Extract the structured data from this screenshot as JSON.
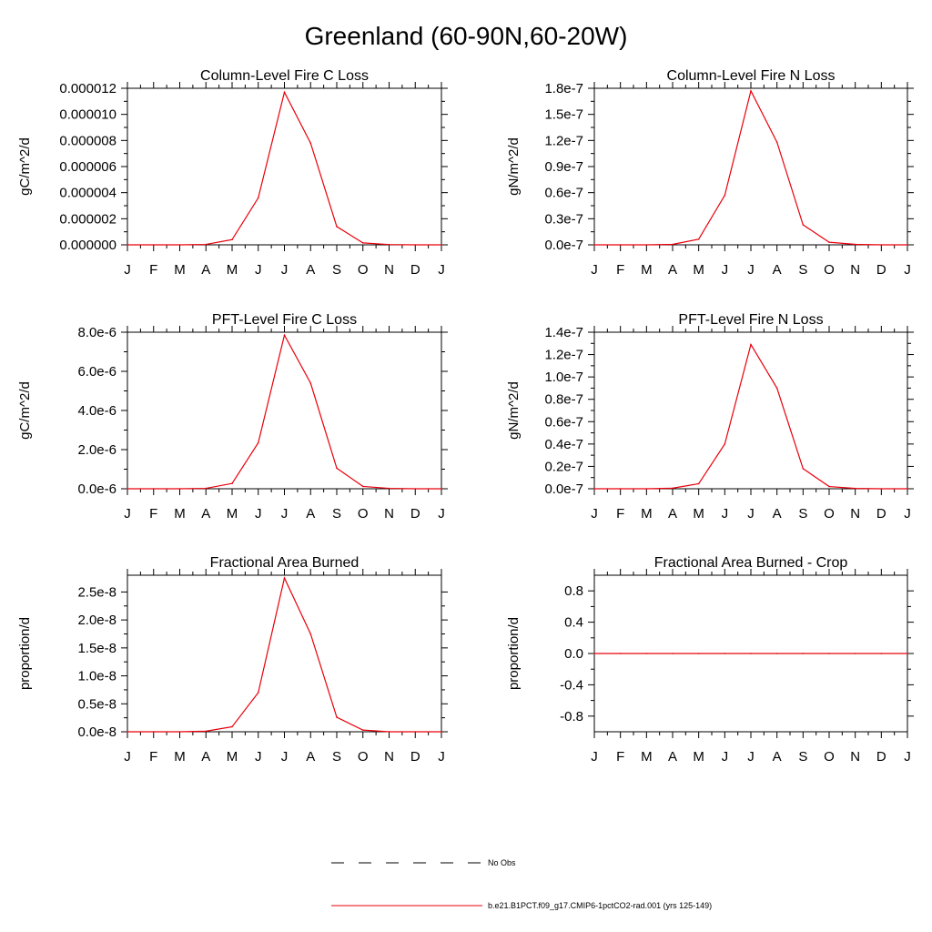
{
  "figure": {
    "title": "Greenland (60-90N,60-20W)",
    "series_color": "#e8000b",
    "legend": [
      {
        "label": "No Obs",
        "style": "dashed",
        "color": "#000000"
      },
      {
        "label": "b.e21.B1PCT.f09_g17.CMIP6-1pctCO2-rad.001 (yrs 125-149)",
        "style": "solid",
        "color": "#e8000b"
      }
    ]
  },
  "chart_data": [
    {
      "type": "line",
      "title": "Column-Level Fire C Loss",
      "ylabel": "gC/m^2/d",
      "categories": [
        "J",
        "F",
        "M",
        "A",
        "M",
        "J",
        "J",
        "A",
        "S",
        "O",
        "N",
        "D",
        "J"
      ],
      "ylim": [
        0,
        1.2e-05
      ],
      "yticks": [
        0,
        2e-06,
        4e-06,
        6e-06,
        8e-06,
        1e-05,
        1.2e-05
      ],
      "ytick_labels": [
        "0.000000",
        "0.000002",
        "0.000004",
        "0.000006",
        "0.000008",
        "0.000010",
        "0.000012"
      ],
      "values": [
        0,
        0,
        0,
        3e-08,
        4e-07,
        3.6e-06,
        1.17e-05,
        7.8e-06,
        1.4e-06,
        1.5e-07,
        2e-08,
        0,
        0
      ]
    },
    {
      "type": "line",
      "title": "Column-Level Fire N Loss",
      "ylabel": "gN/m^2/d",
      "categories": [
        "J",
        "F",
        "M",
        "A",
        "M",
        "J",
        "J",
        "A",
        "S",
        "O",
        "N",
        "D",
        "J"
      ],
      "ylim": [
        0,
        1.8e-07
      ],
      "yticks": [
        0,
        3e-08,
        6e-08,
        9e-08,
        1.2e-07,
        1.5e-07,
        1.8e-07
      ],
      "ytick_labels": [
        "0.0e-7",
        "0.3e-7",
        "0.6e-7",
        "0.9e-7",
        "1.2e-7",
        "1.5e-7",
        "1.8e-7"
      ],
      "values": [
        0,
        0,
        0,
        5e-10,
        6.5e-09,
        5.7e-08,
        1.77e-07,
        1.18e-07,
        2.3e-08,
        3e-09,
        5e-10,
        0,
        0
      ]
    },
    {
      "type": "line",
      "title": "PFT-Level Fire C Loss",
      "ylabel": "gC/m^2/d",
      "categories": [
        "J",
        "F",
        "M",
        "A",
        "M",
        "J",
        "J",
        "A",
        "S",
        "O",
        "N",
        "D",
        "J"
      ],
      "ylim": [
        0,
        8e-06
      ],
      "yticks": [
        0,
        2e-06,
        4e-06,
        6e-06,
        8e-06
      ],
      "ytick_labels": [
        "0.0e-6",
        "2.0e-6",
        "4.0e-6",
        "6.0e-6",
        "8.0e-6"
      ],
      "values": [
        0,
        0,
        0,
        2e-08,
        2.7e-07,
        2.35e-06,
        7.85e-06,
        5.4e-06,
        1.05e-06,
        1.2e-07,
        2e-08,
        0,
        0
      ]
    },
    {
      "type": "line",
      "title": "PFT-Level Fire N Loss",
      "ylabel": "gN/m^2/d",
      "categories": [
        "J",
        "F",
        "M",
        "A",
        "M",
        "J",
        "J",
        "A",
        "S",
        "O",
        "N",
        "D",
        "J"
      ],
      "ylim": [
        0,
        1.4e-07
      ],
      "yticks": [
        0,
        2e-08,
        4e-08,
        6e-08,
        8e-08,
        1e-07,
        1.2e-07,
        1.4e-07
      ],
      "ytick_labels": [
        "0.0e-7",
        "0.2e-7",
        "0.4e-7",
        "0.6e-7",
        "0.8e-7",
        "1.0e-7",
        "1.2e-7",
        "1.4e-7"
      ],
      "values": [
        0,
        0,
        0,
        5e-10,
        4.5e-09,
        4e-08,
        1.29e-07,
        9e-08,
        1.8e-08,
        2e-09,
        3e-10,
        0,
        0
      ]
    },
    {
      "type": "line",
      "title": "Fractional Area Burned",
      "ylabel": "proportion/d",
      "categories": [
        "J",
        "F",
        "M",
        "A",
        "M",
        "J",
        "J",
        "A",
        "S",
        "O",
        "N",
        "D",
        "J"
      ],
      "ylim": [
        0,
        2.8e-08
      ],
      "yticks": [
        0,
        5e-09,
        1e-08,
        1.5e-08,
        2e-08,
        2.5e-08
      ],
      "ytick_labels": [
        "0.0e-8",
        "0.5e-8",
        "1.0e-8",
        "1.5e-8",
        "2.0e-8",
        "2.5e-8"
      ],
      "values": [
        0,
        0,
        0,
        1e-10,
        9e-10,
        7e-09,
        2.75e-08,
        1.75e-08,
        2.6e-09,
        3e-10,
        0,
        0,
        0
      ]
    },
    {
      "type": "line",
      "title": "Fractional Area Burned - Crop",
      "ylabel": "proportion/d",
      "categories": [
        "J",
        "F",
        "M",
        "A",
        "M",
        "J",
        "J",
        "A",
        "S",
        "O",
        "N",
        "D",
        "J"
      ],
      "ylim": [
        -1,
        1
      ],
      "yticks": [
        -0.8,
        -0.4,
        0,
        0.4,
        0.8
      ],
      "ytick_labels": [
        "-0.8",
        "-0.4",
        "0.0",
        "0.4",
        "0.8"
      ],
      "values": [
        0,
        0,
        0,
        0,
        0,
        0,
        0,
        0,
        0,
        0,
        0,
        0,
        0
      ]
    }
  ]
}
